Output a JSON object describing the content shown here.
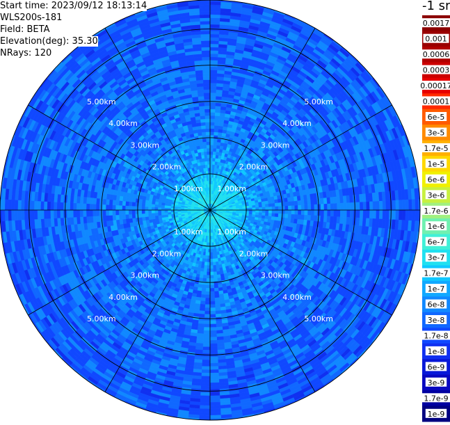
{
  "header": {
    "start_time": "Start time: 2023/09/12 18:13:14",
    "instrument": "WLS200s-181",
    "field": "Field: BETA",
    "elevation": "Elevation(deg): 35.30",
    "nrays": "NRays: 120"
  },
  "colorbar": {
    "unit_title": "-1 sr",
    "labels": [
      "0.0017",
      "0.001",
      "0.0006",
      "0.0003",
      "0.00017",
      "0.0001",
      "6e-5",
      "3e-5",
      "1.7e-5",
      "1e-5",
      "6e-6",
      "3e-6",
      "1.7e-6",
      "1e-6",
      "6e-7",
      "3e-7",
      "1.7e-7",
      "1e-7",
      "6e-8",
      "3e-8",
      "1.7e-8",
      "1e-8",
      "6e-9",
      "3e-9",
      "1.7e-9",
      "1e-9"
    ],
    "colors": [
      "#8b0000",
      "#9a0000",
      "#b00000",
      "#cc0000",
      "#e60000",
      "#ff2a00",
      "#ff5a00",
      "#ff8a00",
      "#ffb000",
      "#ffd800",
      "#f0f000",
      "#c8f040",
      "#a0f080",
      "#70f0b0",
      "#40f0d8",
      "#20e0f0",
      "#10c8ff",
      "#10a8ff",
      "#1088ff",
      "#1068ff",
      "#1048ff",
      "#1030f0",
      "#0818d8",
      "#0808c0",
      "#0000a0",
      "#000080"
    ]
  },
  "chart_data": {
    "type": "heatmap",
    "title": "",
    "projection": "polar PPI",
    "field": "BETA",
    "elevation_deg": 35.3,
    "n_rays": 120,
    "max_range_km": 5.8,
    "range_rings_km": [
      1.0,
      2.0,
      3.0,
      4.0,
      5.0
    ],
    "ring_labels": [
      "1.00km",
      "2.00km",
      "3.00km",
      "4.00km",
      "5.00km"
    ],
    "azimuth_spokes_deg": [
      0,
      30,
      60,
      90,
      120,
      150,
      180,
      210,
      240,
      270,
      300,
      330
    ],
    "value_range": [
      1e-09,
      0.0017
    ],
    "scale": "log",
    "dominant_values": {
      "near_field_0_to_1km": "3e-7 to 1e-6",
      "mid_1_to_2km": "1e-7 to 3e-7",
      "far_2_to_5.8km": "1e-8 to 1e-7"
    }
  }
}
